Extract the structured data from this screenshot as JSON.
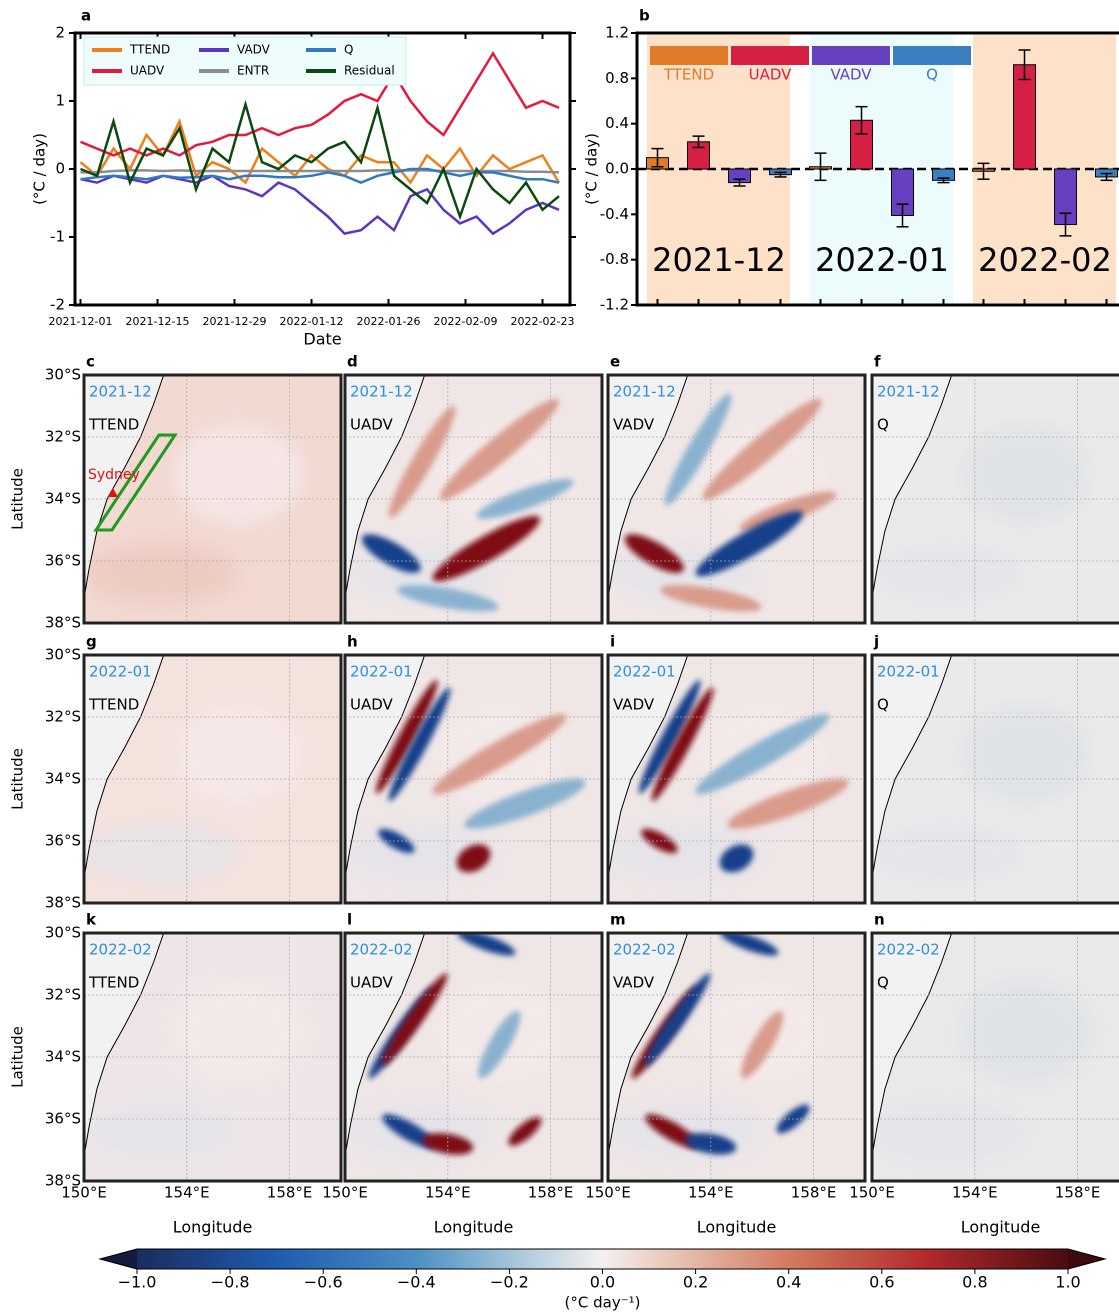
{
  "chart_data": [
    {
      "type": "line",
      "panel": "a",
      "ylabel": "(°C / day)",
      "xlabel": "Date",
      "x": [
        "2021-12-01",
        "2021-12-04",
        "2021-12-07",
        "2021-12-10",
        "2021-12-13",
        "2021-12-16",
        "2021-12-19",
        "2021-12-22",
        "2021-12-25",
        "2021-12-28",
        "2021-12-31",
        "2022-01-03",
        "2022-01-06",
        "2022-01-09",
        "2022-01-12",
        "2022-01-15",
        "2022-01-18",
        "2022-01-21",
        "2022-01-24",
        "2022-01-27",
        "2022-01-30",
        "2022-02-02",
        "2022-02-05",
        "2022-02-08",
        "2022-02-11",
        "2022-02-14",
        "2022-02-17",
        "2022-02-20",
        "2022-02-23",
        "2022-02-26"
      ],
      "xlim": [
        "2021-11-30",
        "2022-02-28"
      ],
      "xticks": [
        "2021-12-01",
        "2021-12-15",
        "2021-12-29",
        "2022-01-12",
        "2022-01-26",
        "2022-02-09",
        "2022-02-23"
      ],
      "ylim": [
        -2,
        2
      ],
      "yticks": [
        -2,
        -1,
        0,
        1,
        2
      ],
      "series": [
        {
          "name": "TTEND",
          "color": "#f07f1a",
          "values": [
            0.1,
            -0.1,
            0.3,
            0.0,
            0.5,
            0.2,
            0.7,
            -0.1,
            0.1,
            0.0,
            -0.2,
            0.3,
            0.1,
            -0.1,
            0.2,
            0.0,
            -0.1,
            0.2,
            0.1,
            0.1,
            -0.2,
            0.2,
            0.0,
            0.3,
            -0.1,
            0.2,
            0.0,
            0.1,
            0.2,
            -0.2
          ]
        },
        {
          "name": "UADV",
          "color": "#e8173c",
          "values": [
            0.4,
            0.3,
            0.2,
            0.3,
            0.2,
            0.3,
            0.2,
            0.35,
            0.4,
            0.5,
            0.5,
            0.6,
            0.5,
            0.6,
            0.65,
            0.8,
            1.0,
            1.1,
            1.0,
            1.4,
            1.0,
            0.7,
            0.5,
            0.9,
            1.3,
            1.7,
            1.3,
            0.9,
            1.0,
            0.9
          ]
        },
        {
          "name": "VADV",
          "color": "#5b35c9",
          "values": [
            -0.15,
            -0.2,
            -0.1,
            -0.15,
            -0.2,
            -0.1,
            -0.15,
            -0.2,
            -0.1,
            -0.25,
            -0.3,
            -0.4,
            -0.2,
            -0.3,
            -0.5,
            -0.7,
            -0.95,
            -0.9,
            -0.7,
            -0.9,
            -0.4,
            -0.3,
            -0.6,
            -0.8,
            -0.7,
            -0.95,
            -0.8,
            -0.6,
            -0.5,
            -0.6
          ]
        },
        {
          "name": "ENTR",
          "color": "#8c8c8c",
          "values": [
            -0.05,
            -0.05,
            -0.03,
            -0.02,
            -0.02,
            -0.03,
            -0.02,
            -0.03,
            -0.03,
            -0.03,
            -0.03,
            -0.03,
            -0.03,
            -0.03,
            -0.03,
            -0.03,
            -0.03,
            -0.03,
            -0.02,
            -0.02,
            -0.02,
            -0.02,
            -0.03,
            -0.03,
            -0.03,
            -0.03,
            -0.03,
            -0.04,
            -0.04,
            -0.05
          ]
        },
        {
          "name": "Q",
          "color": "#2f7bbd",
          "values": [
            -0.15,
            -0.12,
            -0.1,
            -0.12,
            -0.15,
            -0.1,
            -0.13,
            -0.12,
            -0.1,
            -0.15,
            -0.1,
            -0.1,
            -0.12,
            -0.12,
            -0.1,
            -0.05,
            -0.1,
            -0.2,
            -0.1,
            -0.05,
            0.0,
            0.0,
            -0.05,
            -0.1,
            -0.05,
            -0.05,
            -0.1,
            -0.15,
            -0.15,
            -0.2
          ]
        },
        {
          "name": "Residual",
          "color": "#0a4a10",
          "values": [
            0.0,
            -0.1,
            0.7,
            -0.2,
            0.3,
            0.2,
            0.6,
            -0.3,
            0.3,
            0.1,
            0.95,
            0.1,
            0.0,
            0.2,
            0.1,
            0.3,
            0.4,
            0.1,
            0.9,
            -0.1,
            -0.3,
            -0.5,
            0.0,
            -0.7,
            0.0,
            -0.3,
            -0.5,
            -0.2,
            -0.6,
            -0.4
          ]
        }
      ]
    },
    {
      "type": "bar",
      "panel": "b",
      "ylabel": "(°C / day)",
      "categories": [
        "2021-12",
        "2022-01",
        "2022-02"
      ],
      "ylim": [
        -1.2,
        1.2
      ],
      "yticks": [
        -1.2,
        -0.8,
        -0.4,
        {
          "value": 0,
          "label": "0.0"
        },
        0.4,
        0.8,
        1.2
      ],
      "series": [
        {
          "name": "TTEND",
          "color": "#e07b2a",
          "values": [
            0.1,
            0.02,
            -0.02
          ],
          "errors": [
            0.08,
            0.12,
            0.07
          ]
        },
        {
          "name": "UADV",
          "color": "#d61f45",
          "values": [
            0.24,
            0.43,
            0.92
          ],
          "errors": [
            0.05,
            0.12,
            0.13
          ]
        },
        {
          "name": "VADV",
          "color": "#6640c0",
          "values": [
            -0.12,
            -0.41,
            -0.49
          ],
          "errors": [
            0.03,
            0.1,
            0.1
          ]
        },
        {
          "name": "Q",
          "color": "#3a7fc0",
          "values": [
            -0.05,
            -0.1,
            -0.07
          ],
          "errors": [
            0.02,
            0.02,
            0.03
          ]
        }
      ]
    }
  ],
  "maps": {
    "ylabel": "Latitude",
    "xlabel": "Longitude",
    "sydney_label": "Sydney",
    "lat_ticks": [
      "30°S",
      "32°S",
      "34°S",
      "36°S",
      "38°S"
    ],
    "lon_ticks": [
      "150°E",
      "154°E",
      "158°E"
    ],
    "panels": [
      {
        "letter": "c",
        "month": "2021-12",
        "variable": "TTEND"
      },
      {
        "letter": "d",
        "month": "2021-12",
        "variable": "UADV"
      },
      {
        "letter": "e",
        "month": "2021-12",
        "variable": "VADV"
      },
      {
        "letter": "f",
        "month": "2021-12",
        "variable": "Q"
      },
      {
        "letter": "g",
        "month": "2022-01",
        "variable": "TTEND"
      },
      {
        "letter": "h",
        "month": "2022-01",
        "variable": "UADV"
      },
      {
        "letter": "i",
        "month": "2022-01",
        "variable": "VADV"
      },
      {
        "letter": "j",
        "month": "2022-01",
        "variable": "Q"
      },
      {
        "letter": "k",
        "month": "2022-02",
        "variable": "TTEND"
      },
      {
        "letter": "l",
        "month": "2022-02",
        "variable": "UADV"
      },
      {
        "letter": "m",
        "month": "2022-02",
        "variable": "VADV"
      },
      {
        "letter": "n",
        "month": "2022-02",
        "variable": "Q"
      }
    ]
  },
  "colorbar": {
    "label": "(°C day⁻¹)",
    "lim": [
      -1,
      1
    ],
    "ticks": [
      {
        "value": -1,
        "label": "−1.0"
      },
      {
        "value": -0.8,
        "label": "−0.8"
      },
      {
        "value": -0.6,
        "label": "−0.6"
      },
      {
        "value": -0.4,
        "label": "−0.4"
      },
      {
        "value": -0.2,
        "label": "−0.2"
      },
      {
        "value": 0,
        "label": "0.0"
      },
      0.2,
      0.4,
      0.6,
      0.8,
      {
        "value": 1,
        "label": "1.0"
      }
    ]
  }
}
